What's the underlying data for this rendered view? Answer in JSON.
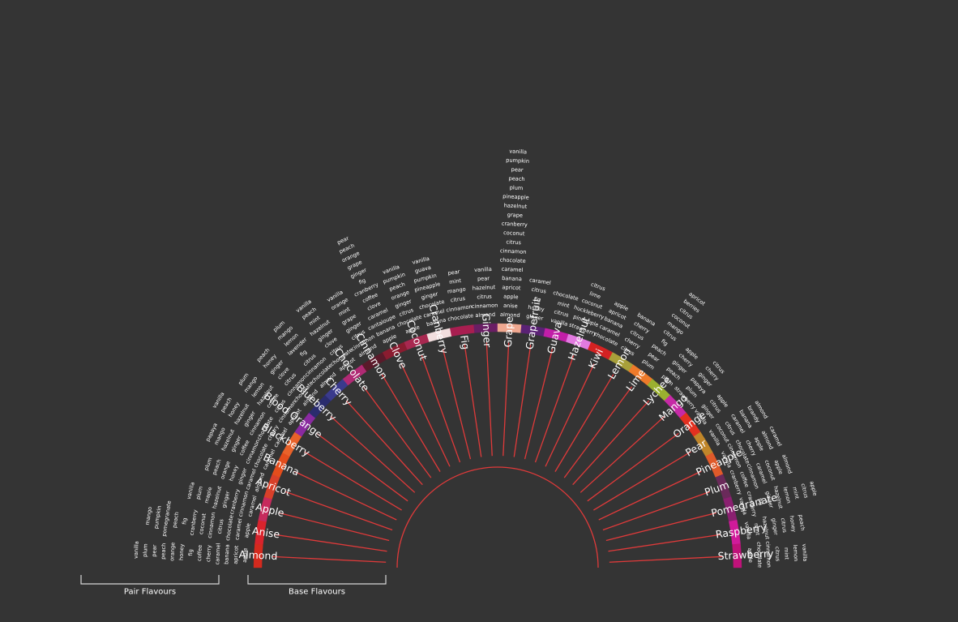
{
  "legend": {
    "pair_label": "Pair Flavours",
    "base_label": "Base Flavours"
  },
  "colors": {
    "background": "#343434",
    "spoke": "#e03a3a",
    "text": "#ffffff",
    "bracket": "#d8d8d8"
  },
  "flavours": [
    {
      "name": "Almond",
      "color": "#d42a1e",
      "pairs": [
        "apple",
        "apricot",
        "banana",
        "caramel",
        "cherry",
        "coffee",
        "fig",
        "honey",
        "orange",
        "peach",
        "pear",
        "plum",
        "vanilla"
      ]
    },
    {
      "name": "Anise",
      "color": "#d8232c",
      "pairs": [
        "apple",
        "caramel",
        "chocolate",
        "citrus",
        "cinnamon",
        "coconut",
        "cranberry",
        "fig",
        "peach",
        "pomegranate",
        "pumpkin",
        "mango"
      ]
    },
    {
      "name": "Apple",
      "color": "#c62a5c",
      "pairs": [
        "caramel",
        "cinnamon",
        "cranberry",
        "ginger",
        "hazelnut",
        "maple",
        "plum",
        "vanilla"
      ]
    },
    {
      "name": "Apricot",
      "color": "#d8402a",
      "pairs": [
        "almond",
        "caramel",
        "ginger",
        "honey",
        "orange",
        "peach",
        "plum"
      ]
    },
    {
      "name": "Banana",
      "color": "#e34d1c",
      "pairs": [
        "caramel",
        "chocolate",
        "cinnamon",
        "coffee",
        "ginger",
        "hazelnut",
        "mango",
        "papaya"
      ]
    },
    {
      "name": "Blackberry",
      "color": "#e8622a",
      "pairs": [
        "caramel",
        "cherry",
        "chocolate",
        "cinnamon",
        "ginger",
        "hazelnut",
        "honey",
        "peach",
        "vanilla"
      ]
    },
    {
      "name": "Blood Orange",
      "color": "#8a2aa0",
      "pairs": [
        "apricot",
        "cinnamon",
        "citrus",
        "coffee",
        "hazelnut",
        "lemon",
        "mango",
        "plum"
      ]
    },
    {
      "name": "Blueberry",
      "color": "#2a2c6e",
      "pairs": [
        "almond",
        "chocolate",
        "cinnamon",
        "citrus",
        "clove",
        "ginger",
        "honey",
        "peach"
      ]
    },
    {
      "name": "Cherry",
      "color": "#3a3a8c",
      "pairs": [
        "almond",
        "chocolate",
        "cinnamon",
        "citrus",
        "fig",
        "lavender",
        "lemon",
        "mango",
        "plum"
      ]
    },
    {
      "name": "Chocolate",
      "color": "#b02a74",
      "pairs": [
        "apricot",
        "chocolate",
        "citrus",
        "clove",
        "ginger",
        "hazelnut",
        "mint",
        "peach",
        "vanilla"
      ]
    },
    {
      "name": "Cinnamon",
      "color": "#5a1a2a",
      "pairs": [
        "almond",
        "cinnamon",
        "citrus",
        "ginger",
        "grape",
        "mint",
        "orange",
        "vanilla"
      ]
    },
    {
      "name": "Clove",
      "color": "#8a1c30",
      "pairs": [
        "apple",
        "banana",
        "cantaloupe",
        "caramel",
        "clove",
        "coffee",
        "cranberry",
        "fig",
        "ginger",
        "grape",
        "orange",
        "peach",
        "pear"
      ]
    },
    {
      "name": "Coconut",
      "color": "#a82850",
      "pairs": [
        "apple",
        "chocolate",
        "citrus",
        "ginger",
        "orange",
        "peach",
        "pumpkin",
        "vanilla"
      ]
    },
    {
      "name": "Cranberry",
      "color": "#f2dede",
      "pairs": [
        "banana",
        "caramel",
        "chocolate",
        "ginger",
        "pineapple",
        "pumpkin",
        "guava",
        "vanilla"
      ]
    },
    {
      "name": "Fig",
      "color": "#a81e50",
      "pairs": [
        "chocolate",
        "cinnamon",
        "citrus",
        "mango",
        "mint",
        "pear"
      ]
    },
    {
      "name": "Ginger",
      "color": "#6a1e64",
      "pairs": [
        "almond",
        "cinnamon",
        "citrus",
        "hazelnut",
        "pear",
        "vanilla"
      ]
    },
    {
      "name": "Grape",
      "color": "#f0a890",
      "pairs": [
        "almond",
        "anise",
        "apple",
        "apricot",
        "banana",
        "caramel",
        "chocolate",
        "cinnamon",
        "citrus",
        "coconut",
        "cranberry",
        "grape",
        "hazelnut",
        "pineapple",
        "plum",
        "peach",
        "pear",
        "pumpkin",
        "vanilla"
      ]
    },
    {
      "name": "Grapefruit",
      "color": "#5a2274",
      "pairs": [
        "ginger",
        "honey",
        "fig",
        "citrus",
        "caramel"
      ]
    },
    {
      "name": "Guava",
      "color": "#c21ea8",
      "pairs": [
        "vanilla",
        "citrus",
        "mint",
        "chocolate"
      ]
    },
    {
      "name": "Hazelnut",
      "color": "#e27ae0",
      "pairs": [
        "strawberry",
        "pineapple",
        "huckleberry",
        "coconut",
        "lime",
        "citrus"
      ]
    },
    {
      "name": "Kiwi",
      "color": "#d42222",
      "pairs": [
        "chocolate",
        "caramel",
        "banana",
        "apricot",
        "apple"
      ]
    },
    {
      "name": "Lemon",
      "color": "#a8a03a",
      "pairs": [
        "citrus",
        "cherry",
        "citrus",
        "cherry",
        "banana"
      ]
    },
    {
      "name": "Lime",
      "color": "#ee7a2a",
      "pairs": [
        "plum",
        "pear",
        "peach",
        "fig",
        "citrus",
        "mango",
        "coconut",
        "citrus",
        "berries",
        "apricot"
      ]
    },
    {
      "name": "Lychee",
      "color": "#9ab030",
      "pairs": [
        "plum",
        "peach",
        "ginger",
        "cherry",
        "apple"
      ]
    },
    {
      "name": "Mango",
      "color": "#c62aa6",
      "pairs": [
        "strawberry",
        "plum",
        "papaya",
        "ginger",
        "cherry",
        "citrus"
      ]
    },
    {
      "name": "Orange",
      "color": "#e23020",
      "pairs": [
        "vanilla",
        "ginger",
        "citrus",
        "apple"
      ]
    },
    {
      "name": "Pear",
      "color": "#c0862a",
      "pairs": [
        "vanilla",
        "coconut",
        "citrus",
        "caramel",
        "banana",
        "brandy",
        "almond"
      ]
    },
    {
      "name": "Pineapple",
      "color": "#e05a2a",
      "pairs": [
        "vanilla",
        "cinnamon",
        "chocolate",
        "cherry",
        "apple",
        "almond",
        "caramel"
      ]
    },
    {
      "name": "Plum",
      "color": "#6a2a5a",
      "pairs": [
        "cranberry",
        "coffee",
        "cinnamon",
        "caramel",
        "coconut",
        "apple",
        "almond"
      ]
    },
    {
      "name": "Pomegranate",
      "color": "#8a2070",
      "pairs": [
        "vanilla",
        "cranberry",
        "fig",
        "ginger",
        "hazelnut",
        "lemon",
        "mint",
        "citrus",
        "apple"
      ]
    },
    {
      "name": "Raspberry",
      "color": "#d01a9a",
      "pairs": [
        "vanilla",
        "mint",
        "hazelnut",
        "ginger",
        "citrus",
        "honey",
        "peach"
      ]
    },
    {
      "name": "Strawberry",
      "color": "#c0127a",
      "pairs": [
        "apple",
        "chocolate",
        "cinnamon",
        "citrus",
        "mint",
        "lemon",
        "vanilla"
      ]
    }
  ]
}
